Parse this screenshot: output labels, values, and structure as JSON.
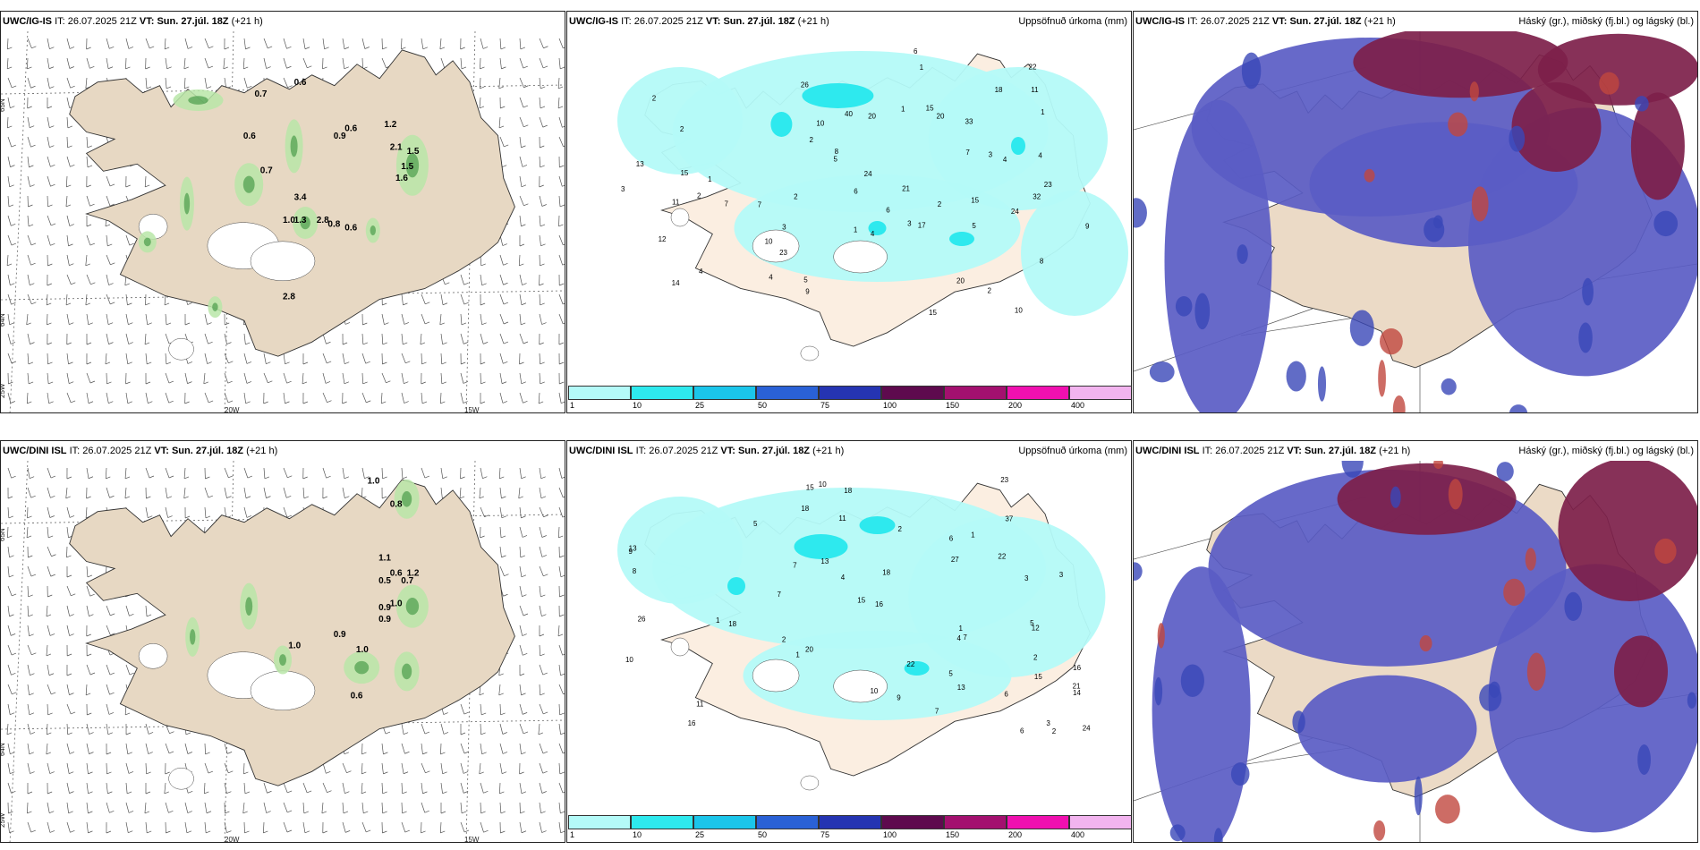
{
  "rows": [
    {
      "model": "UWC/IG-IS",
      "it_label": "IT:",
      "it_value": "26.07.2025 21Z",
      "vt_label": "VT:",
      "vt_value": "Sun. 27.júl. 18Z",
      "lead": "(+21 h)",
      "wind_values": [
        "0.7",
        "0.6",
        "0.6",
        "0.6",
        "0.9",
        "1.2",
        "2.1",
        "1.5",
        "1.5",
        "1.6",
        "0.7",
        "3.4",
        "1.0",
        "1.3",
        "2.8",
        "0.8",
        "0.6",
        "2.8"
      ],
      "precip_numbers": [
        "10",
        "2",
        "3",
        "2",
        "8",
        "2",
        "4",
        "7",
        "33",
        "40",
        "20",
        "2",
        "23",
        "26",
        "21",
        "12",
        "15",
        "24",
        "13",
        "14",
        "22",
        "20",
        "3",
        "9",
        "23",
        "15",
        "7",
        "6",
        "5",
        "11",
        "17",
        "11",
        "10",
        "15",
        "10",
        "24",
        "32",
        "20",
        "18",
        "15",
        "3",
        "4",
        "4",
        "6",
        "2",
        "1",
        "1",
        "1",
        "1",
        "1",
        "2",
        "4",
        "5",
        "4",
        "2",
        "3",
        "9",
        "8",
        "6",
        "7",
        "5"
      ]
    },
    {
      "model": "UWC/DINI ISL",
      "it_label": "IT:",
      "it_value": "26.07.2025 21Z",
      "vt_label": "VT:",
      "vt_value": "Sun. 27.júl. 18Z",
      "lead": "(+21 h)",
      "wind_values": [
        "1.0",
        "0.8",
        "1.1",
        "0.6",
        "1.2",
        "0.5",
        "0.7",
        "0.9",
        "0.9",
        "1.0",
        "0.9",
        "1.0",
        "0.6",
        "1.0"
      ],
      "precip_numbers": [
        "5",
        "3",
        "8",
        "2",
        "7",
        "16",
        "18",
        "24",
        "22",
        "20",
        "13",
        "18",
        "21",
        "16",
        "13",
        "10",
        "6",
        "13",
        "10",
        "26",
        "9",
        "14",
        "11",
        "23",
        "15",
        "7",
        "11",
        "7",
        "16",
        "18",
        "15",
        "27",
        "37",
        "15",
        "12",
        "22",
        "18",
        "6",
        "7",
        "4",
        "3",
        "1",
        "1",
        "2",
        "1",
        "10",
        "9",
        "5",
        "4",
        "3",
        "2",
        "2",
        "1",
        "6",
        "5"
      ]
    }
  ],
  "precip_title": "Uppsöfnuð úrkoma (mm)",
  "cloud_title": "Háský (gr.), miðský (fj.bl.) og lágský (bl.)",
  "colorbar": {
    "labels": [
      "1",
      "10",
      "25",
      "50",
      "75",
      "100",
      "150",
      "200",
      "400"
    ],
    "colors": [
      "#b4faf8",
      "#2ee9ee",
      "#1bc5ea",
      "#2a61d6",
      "#2534b2",
      "#5e0a4e",
      "#a3106f",
      "#f010b0",
      "#f2b4ef"
    ]
  },
  "axis_ticks": {
    "lat_top": "65N",
    "lat_bottom": "64N",
    "lon_left": "20W",
    "lon_right": "15W",
    "corner": "25W"
  }
}
